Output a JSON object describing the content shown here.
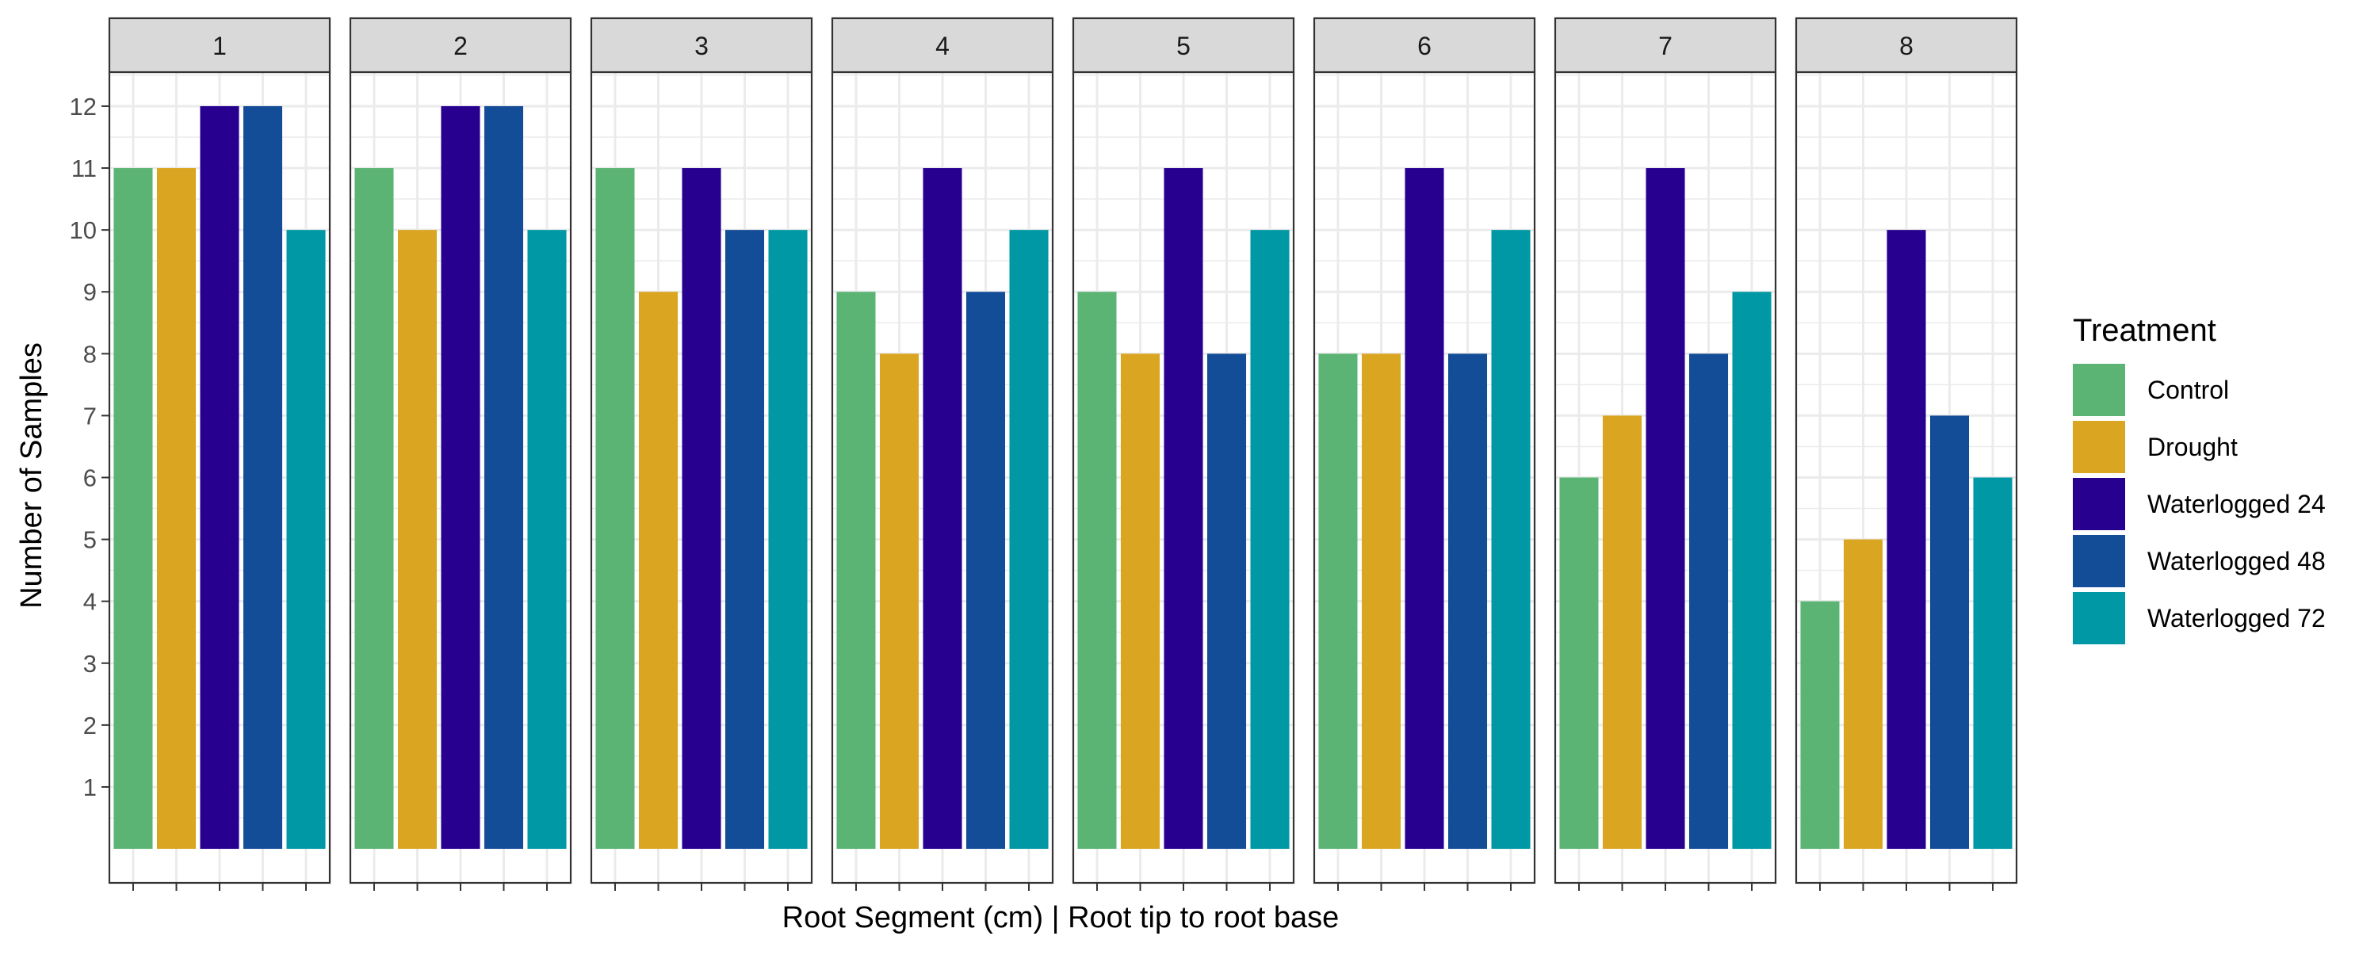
{
  "chart_data": {
    "type": "bar",
    "facet_labels": [
      "1",
      "2",
      "3",
      "4",
      "5",
      "6",
      "7",
      "8"
    ],
    "series": [
      {
        "name": "Control",
        "color": "#5bb473",
        "values": [
          11,
          11,
          11,
          9,
          9,
          8,
          6,
          4
        ]
      },
      {
        "name": "Drought",
        "color": "#daa520",
        "values": [
          11,
          10,
          9,
          8,
          8,
          8,
          7,
          5
        ]
      },
      {
        "name": "Waterlogged 24",
        "color": "#28008f",
        "values": [
          12,
          12,
          11,
          11,
          11,
          11,
          11,
          10
        ]
      },
      {
        "name": "Waterlogged 48",
        "color": "#134c97",
        "values": [
          12,
          12,
          10,
          9,
          8,
          8,
          8,
          7
        ]
      },
      {
        "name": "Waterlogged 72",
        "color": "#0098a5",
        "values": [
          10,
          10,
          10,
          10,
          10,
          10,
          9,
          6
        ]
      }
    ],
    "xlabel": "Root Segment (cm) | Root tip to root base",
    "ylabel": "Number of Samples",
    "yticks": [
      1,
      2,
      3,
      4,
      5,
      6,
      7,
      8,
      9,
      10,
      11,
      12
    ],
    "ylim": [
      -0.55,
      12.55
    ],
    "baseline": 0,
    "legend_title": "Treatment",
    "legend_position": "right",
    "grid": true,
    "colors": {
      "strip_fill": "#d9d9d9",
      "grid": "#ebebeb",
      "panel_border": "#333333",
      "text": "#000000",
      "tick_text": "#4d4d4d"
    }
  }
}
